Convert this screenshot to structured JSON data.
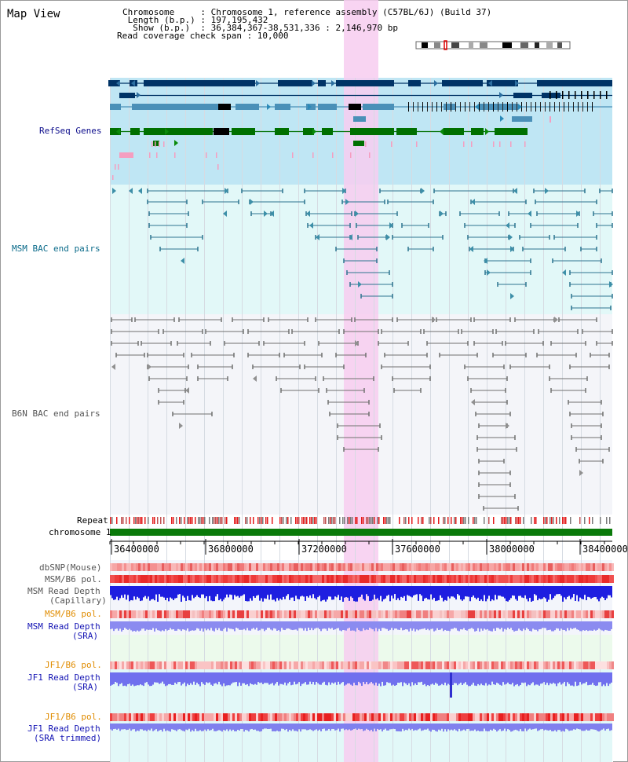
{
  "page": {
    "title": "Map View"
  },
  "header": {
    "lines": [
      "Chromosome     : Chromosome 1, reference assembly (C57BL/6J) (Build 37)",
      " Length (b.p.) : 197,195,432",
      "  Show (b.p.)  : 36,384,367-38,531,336 : 2,146,970 bp",
      "Read coverage check span : 10,000"
    ]
  },
  "tracks": {
    "refseq": "RefSeq Genes",
    "msm_bac": "MSM BAC end pairs",
    "b6n_bac": "B6N BAC end pairs",
    "repeat": "Repeat",
    "chromosome": "chromosome 1",
    "dbsnp": "dbSNP(Mouse)",
    "msm_b6_pol_1": "MSM/B6 pol.",
    "msm_read_depth_cap_1": "MSM Read Depth",
    "msm_read_depth_cap_2": "(Capillary)",
    "msm_b6_pol_2": "MSM/B6 pol.",
    "msm_read_depth_sra_1": "MSM Read Depth",
    "msm_read_depth_sra_2": "(SRA)",
    "jf1_b6_pol_1": "JF1/B6 pol.",
    "jf1_read_depth_1": "JF1 Read Depth",
    "jf1_read_depth_2": "(SRA)",
    "jf1_b6_pol_2": "JF1/B6 pol.",
    "jf1_read_depth_trim_1": "JF1 Read Depth",
    "jf1_read_depth_trim_2": "(SRA trimmed)"
  },
  "axis": {
    "ticks": [
      "36400000",
      "36800000",
      "37200000",
      "37600000",
      "38000000",
      "38400000"
    ]
  },
  "colors": {
    "refseq_bg": "#bfe6f4",
    "msm_bg": "#e2f8f8",
    "b6n_bg": "#f4f5f9",
    "highlight": "#f7ccf0",
    "navy": "#003366",
    "steel": "#4a90b8",
    "green": "#007000",
    "pink": "#f59ec0",
    "teal_feature": "#2d7590",
    "gray_feature": "#707070",
    "chrom_green": "#0a7a0a",
    "depth_blue": "#1e1ee0",
    "depth_light": "#8b8bf0"
  }
}
